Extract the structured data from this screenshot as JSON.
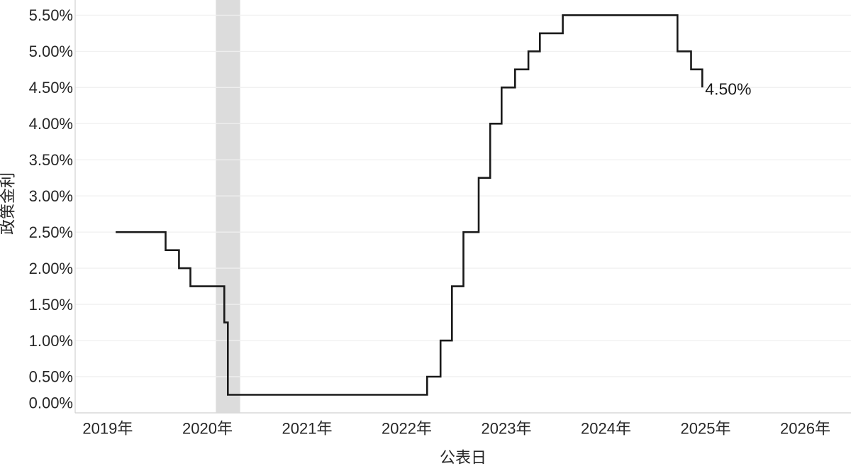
{
  "chart_data": {
    "type": "line",
    "step_shape": "hv",
    "title": "",
    "xlabel": "公表日",
    "ylabel": "政策金利",
    "series_name": "政策金利",
    "line_color": "#1a1a1a",
    "grid": true,
    "legend_position": "none",
    "xlim_years": [
      2018.673,
      2026.459
    ],
    "ylim": [
      0,
      5.71
    ],
    "x_ticks": [
      {
        "year": 2019,
        "label": "2019年"
      },
      {
        "year": 2020,
        "label": "2020年"
      },
      {
        "year": 2021,
        "label": "2021年"
      },
      {
        "year": 2022,
        "label": "2022年"
      },
      {
        "year": 2023,
        "label": "2023年"
      },
      {
        "year": 2024,
        "label": "2024年"
      },
      {
        "year": 2025,
        "label": "2025年"
      },
      {
        "year": 2026,
        "label": "2026年"
      }
    ],
    "y_ticks": [
      {
        "value": 0.0,
        "label": "0.00%"
      },
      {
        "value": 0.5,
        "label": "0.50%"
      },
      {
        "value": 1.0,
        "label": "1.00%"
      },
      {
        "value": 1.5,
        "label": "1.50%"
      },
      {
        "value": 2.0,
        "label": "2.00%"
      },
      {
        "value": 2.5,
        "label": "2.50%"
      },
      {
        "value": 3.0,
        "label": "3.00%"
      },
      {
        "value": 3.5,
        "label": "3.50%"
      },
      {
        "value": 4.0,
        "label": "4.00%"
      },
      {
        "value": 4.5,
        "label": "4.50%"
      },
      {
        "value": 5.0,
        "label": "5.00%"
      },
      {
        "value": 5.5,
        "label": "5.50%"
      }
    ],
    "recession_band": {
      "start": "2020-02-01",
      "end": "2020-04-30",
      "color": "#dcdcdc"
    },
    "points": [
      {
        "date": "2019-01-30",
        "rate": 2.5
      },
      {
        "date": "2019-08-01",
        "rate": 2.25
      },
      {
        "date": "2019-09-19",
        "rate": 2.0
      },
      {
        "date": "2019-10-31",
        "rate": 1.75
      },
      {
        "date": "2020-03-03",
        "rate": 1.25
      },
      {
        "date": "2020-03-16",
        "rate": 0.25
      },
      {
        "date": "2022-03-17",
        "rate": 0.5
      },
      {
        "date": "2022-05-05",
        "rate": 1.0
      },
      {
        "date": "2022-06-16",
        "rate": 1.75
      },
      {
        "date": "2022-07-28",
        "rate": 2.5
      },
      {
        "date": "2022-09-22",
        "rate": 3.25
      },
      {
        "date": "2022-11-03",
        "rate": 4.0
      },
      {
        "date": "2022-12-15",
        "rate": 4.5
      },
      {
        "date": "2023-02-02",
        "rate": 4.75
      },
      {
        "date": "2023-03-23",
        "rate": 5.0
      },
      {
        "date": "2023-05-04",
        "rate": 5.25
      },
      {
        "date": "2023-07-27",
        "rate": 5.5
      },
      {
        "date": "2024-09-19",
        "rate": 5.0
      },
      {
        "date": "2024-11-08",
        "rate": 4.75
      },
      {
        "date": "2024-12-19",
        "rate": 4.5
      }
    ],
    "end_annotation": {
      "text": "4.50%",
      "date": "2024-12-19",
      "rate": 4.5
    },
    "colors": {
      "grid_over_white": "#f0f0f0",
      "axis_line": "#d4d4d4",
      "text": "#262626"
    }
  }
}
